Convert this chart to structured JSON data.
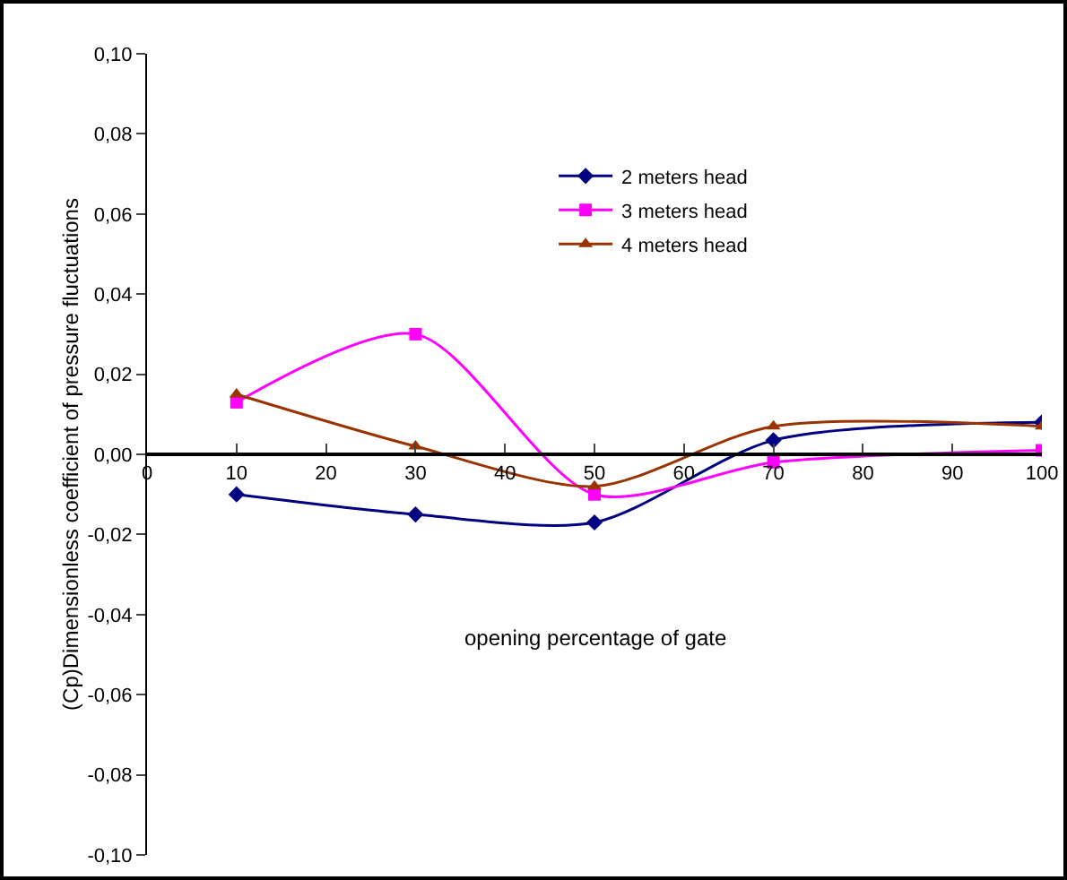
{
  "chart_data": {
    "type": "line",
    "xlabel": "opening percentage of gate",
    "ylabel": "(Cp)Dimensionless coefficient of pressure fluctuations",
    "x": [
      10,
      30,
      50,
      70,
      100
    ],
    "series": [
      {
        "name": "2 meters head",
        "color": "#000080",
        "marker": "diamond",
        "values": [
          -0.01,
          -0.015,
          -0.017,
          0.0035,
          0.008
        ]
      },
      {
        "name": "3 meters head",
        "color": "#ff00ff",
        "marker": "square",
        "values": [
          0.013,
          0.03,
          -0.01,
          -0.002,
          0.001
        ]
      },
      {
        "name": "4 meters head",
        "color": "#993300",
        "marker": "triangle",
        "values": [
          0.015,
          0.002,
          -0.008,
          0.007,
          0.007
        ]
      }
    ],
    "xlim": [
      0,
      100
    ],
    "xticks": [
      0,
      10,
      20,
      30,
      40,
      50,
      60,
      70,
      80,
      90,
      100
    ],
    "ylim": [
      -0.1,
      0.1
    ],
    "yticks": [
      {
        "value": 0.1,
        "label": "0,10"
      },
      {
        "value": 0.08,
        "label": "0,08"
      },
      {
        "value": 0.06,
        "label": "0,06"
      },
      {
        "value": 0.04,
        "label": "0,04"
      },
      {
        "value": 0.02,
        "label": "0,02"
      },
      {
        "value": 0,
        "label": "0,00"
      },
      {
        "value": -0.02,
        "label": "-0,02"
      },
      {
        "value": -0.04,
        "label": "-0,04"
      },
      {
        "value": -0.06,
        "label": "-0,06"
      },
      {
        "value": -0.08,
        "label": "-0,08"
      },
      {
        "value": -0.1,
        "label": "-0,10"
      }
    ],
    "grid": false,
    "legend": "top right"
  }
}
